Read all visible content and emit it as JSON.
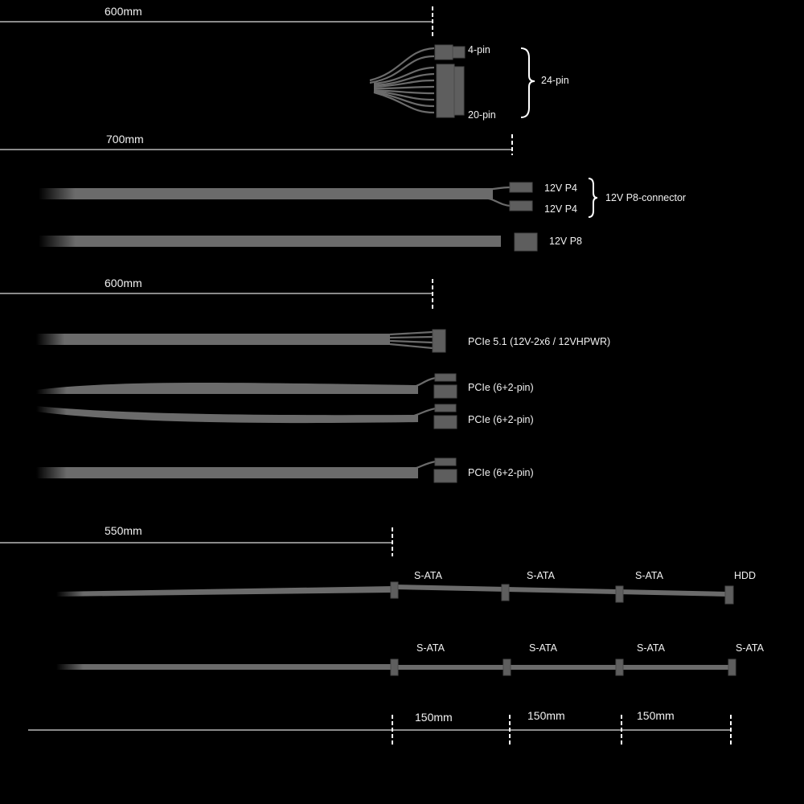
{
  "colors": {
    "background": "#000000",
    "cable": "#6b6b6b",
    "text": "#f2f2f2",
    "dimension_line": "#8a8a8a"
  },
  "atx_section": {
    "length": "600mm",
    "labels": {
      "four_pin": "4-pin",
      "twenty_pin": "20-pin",
      "combined": "24-pin"
    }
  },
  "cpu_section": {
    "length": "700mm",
    "cable1": {
      "top": "12V P4",
      "bottom": "12V P4",
      "group": "12V P8-connector"
    },
    "cable2": "12V P8"
  },
  "pcie_section": {
    "length": "600mm",
    "cables": [
      "PCIe 5.1 (12V-2x6 / 12VHPWR)",
      "PCIe (6+2-pin)",
      "PCIe (6+2-pin)",
      "PCIe (6+2-pin)"
    ]
  },
  "sata_section": {
    "length": "550mm",
    "cable1": [
      "S-ATA",
      "S-ATA",
      "S-ATA",
      "HDD"
    ],
    "cable2": [
      "S-ATA",
      "S-ATA",
      "S-ATA",
      "S-ATA"
    ],
    "spacing": [
      "150mm",
      "150mm",
      "150mm"
    ]
  }
}
